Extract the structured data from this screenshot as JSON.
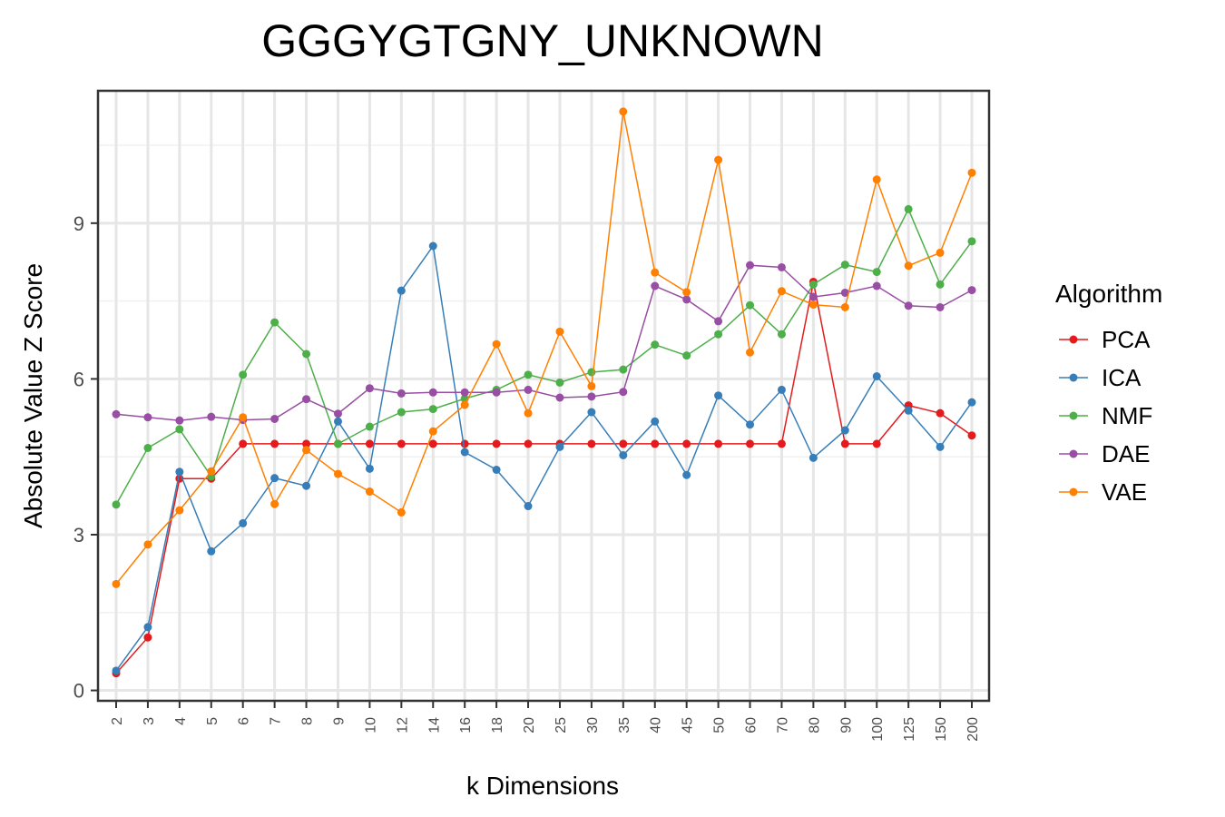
{
  "chart_data": {
    "type": "line",
    "title": "GGGYGTGNY_UNKNOWN",
    "xlabel": "k Dimensions",
    "ylabel": "Absolute Value Z Score",
    "categories": [
      "2",
      "3",
      "4",
      "5",
      "6",
      "7",
      "8",
      "9",
      "10",
      "12",
      "14",
      "16",
      "18",
      "20",
      "25",
      "30",
      "35",
      "40",
      "45",
      "50",
      "60",
      "70",
      "80",
      "90",
      "100",
      "125",
      "150",
      "200"
    ],
    "y_ticks": [
      0,
      3,
      6,
      9
    ],
    "ylim": [
      -0.2,
      11.55
    ],
    "grid": true,
    "legend": {
      "title": "Algorithm",
      "position": "right"
    },
    "series": [
      {
        "name": "PCA",
        "color": "#e41a1c",
        "values": [
          0.33,
          1.02,
          4.08,
          4.08,
          4.75,
          4.75,
          4.75,
          4.75,
          4.75,
          4.75,
          4.75,
          4.75,
          4.75,
          4.75,
          4.75,
          4.75,
          4.75,
          4.75,
          4.75,
          4.75,
          4.75,
          4.75,
          7.87,
          4.75,
          4.75,
          5.49,
          5.34,
          4.91
        ]
      },
      {
        "name": "ICA",
        "color": "#377eb8",
        "values": [
          0.38,
          1.22,
          4.21,
          2.68,
          3.22,
          4.09,
          3.94,
          5.18,
          4.27,
          7.7,
          8.56,
          4.59,
          4.25,
          3.55,
          4.69,
          5.36,
          4.53,
          5.18,
          4.15,
          5.68,
          5.12,
          5.79,
          4.48,
          5.01,
          6.05,
          5.39,
          4.69,
          5.55
        ]
      },
      {
        "name": "NMF",
        "color": "#4daf4a",
        "values": [
          3.58,
          4.67,
          5.03,
          4.12,
          6.08,
          7.09,
          6.48,
          4.75,
          5.08,
          5.36,
          5.42,
          5.62,
          5.79,
          6.08,
          5.93,
          6.13,
          6.18,
          6.66,
          6.45,
          6.86,
          7.42,
          6.86,
          7.82,
          8.2,
          8.06,
          9.27,
          7.82,
          8.65
        ]
      },
      {
        "name": "DAE",
        "color": "#984ea3",
        "values": [
          5.32,
          5.26,
          5.2,
          5.27,
          5.21,
          5.23,
          5.61,
          5.33,
          5.82,
          5.72,
          5.74,
          5.74,
          5.74,
          5.79,
          5.64,
          5.66,
          5.75,
          7.79,
          7.53,
          7.11,
          8.19,
          8.15,
          7.58,
          7.66,
          7.79,
          7.41,
          7.38,
          7.71
        ]
      },
      {
        "name": "VAE",
        "color": "#ff7f00",
        "values": [
          2.05,
          2.81,
          3.47,
          4.22,
          5.26,
          3.59,
          4.63,
          4.17,
          3.83,
          3.43,
          4.99,
          5.5,
          6.67,
          5.34,
          6.91,
          5.86,
          11.15,
          8.05,
          7.67,
          10.22,
          6.51,
          7.69,
          7.43,
          7.38,
          9.84,
          8.18,
          8.43,
          9.97
        ]
      }
    ]
  }
}
